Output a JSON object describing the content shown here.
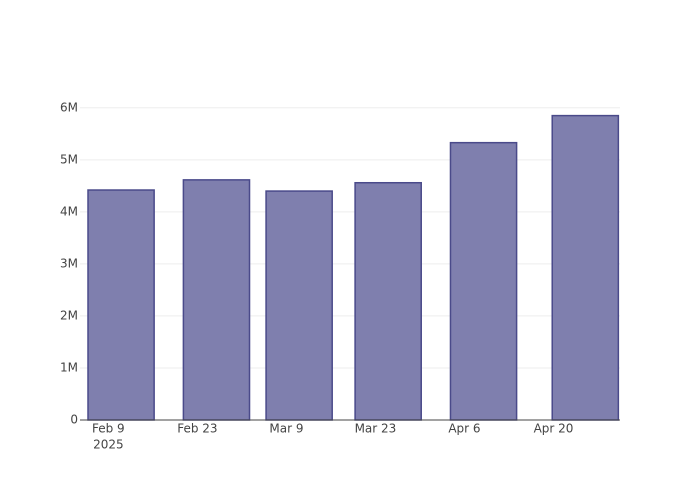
{
  "chart_data": {
    "type": "bar",
    "x": [
      "2025-02-11",
      "2025-02-26",
      "2025-03-11",
      "2025-03-25",
      "2025-04-09",
      "2025-04-25"
    ],
    "values": [
      4420000,
      4615000,
      4400000,
      4560000,
      5330000,
      5850000
    ],
    "color": "#7f7fae",
    "edge_color": "#4a4a8a",
    "xlim": [
      "2025-02-04T13:00:00Z",
      "2025-04-30T11:00:00Z"
    ],
    "xticks": [
      {
        "value": "2025-02-09",
        "label": "Feb 9"
      },
      {
        "value": "2025-02-23",
        "label": "Feb 23"
      },
      {
        "value": "2025-03-09",
        "label": "Mar 9"
      },
      {
        "value": "2025-03-23",
        "label": "Mar 23"
      },
      {
        "value": "2025-04-06",
        "label": "Apr 6"
      },
      {
        "value": "2025-04-20",
        "label": "Apr 20"
      }
    ],
    "x_year_label": "2025",
    "ylim": [
      0,
      6150000
    ],
    "yticks": [
      0,
      {
        "value": 1000000,
        "label": "1M"
      },
      {
        "value": 2000000,
        "label": "2M"
      },
      {
        "value": 3000000,
        "label": "3M"
      },
      {
        "value": 4000000,
        "label": "4M"
      },
      {
        "value": 5000000,
        "label": "5M"
      },
      {
        "value": 6000000,
        "label": "6M"
      }
    ],
    "grid": true
  }
}
